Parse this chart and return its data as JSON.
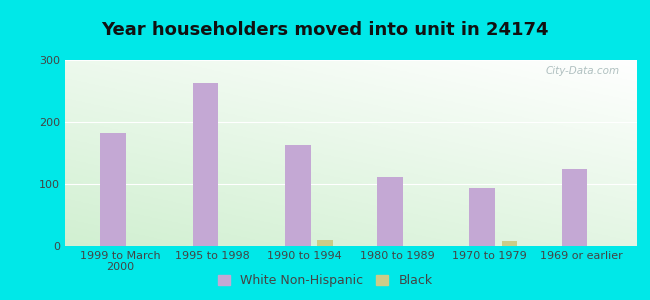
{
  "title": "Year householders moved into unit in 24174",
  "categories": [
    "1999 to March\n2000",
    "1995 to 1998",
    "1990 to 1994",
    "1980 to 1989",
    "1970 to 1979",
    "1969 or earlier"
  ],
  "white_values": [
    182,
    263,
    163,
    112,
    93,
    124
  ],
  "black_values": [
    0,
    0,
    10,
    0,
    8,
    0
  ],
  "white_color": "#c4a8d4",
  "black_color": "#cccc88",
  "bg_outer": "#00e8e8",
  "ylim": [
    0,
    300
  ],
  "yticks": [
    0,
    100,
    200,
    300
  ],
  "bar_width": 0.28,
  "title_fontsize": 13,
  "tick_fontsize": 8,
  "legend_fontsize": 9,
  "watermark": "City-Data.com"
}
